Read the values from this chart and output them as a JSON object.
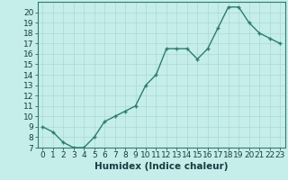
{
  "title": "",
  "xlabel": "Humidex (Indice chaleur)",
  "ylabel": "",
  "x": [
    0,
    1,
    2,
    3,
    4,
    5,
    6,
    7,
    8,
    9,
    10,
    11,
    12,
    13,
    14,
    15,
    16,
    17,
    18,
    19,
    20,
    21,
    22,
    23
  ],
  "y": [
    9.0,
    8.5,
    7.5,
    7.0,
    7.0,
    8.0,
    9.5,
    10.0,
    10.5,
    11.0,
    13.0,
    14.0,
    16.5,
    16.5,
    16.5,
    15.5,
    16.5,
    18.5,
    20.5,
    20.5,
    19.0,
    18.0,
    17.5,
    17.0
  ],
  "line_color": "#2e7d6b",
  "marker": "+",
  "marker_size": 3,
  "bg_color": "#c5eeeb",
  "grid_color": "#aad8d3",
  "tick_label_color": "#1a3a40",
  "ylim": [
    7,
    21
  ],
  "xlim": [
    -0.5,
    23.5
  ],
  "yticks": [
    7,
    8,
    9,
    10,
    11,
    12,
    13,
    14,
    15,
    16,
    17,
    18,
    19,
    20
  ],
  "xticks": [
    0,
    1,
    2,
    3,
    4,
    5,
    6,
    7,
    8,
    9,
    10,
    11,
    12,
    13,
    14,
    15,
    16,
    17,
    18,
    19,
    20,
    21,
    22,
    23
  ],
  "line_width": 1.0,
  "xlabel_fontsize": 7.5,
  "tick_fontsize": 6.5,
  "spine_color": "#2e7d6b"
}
